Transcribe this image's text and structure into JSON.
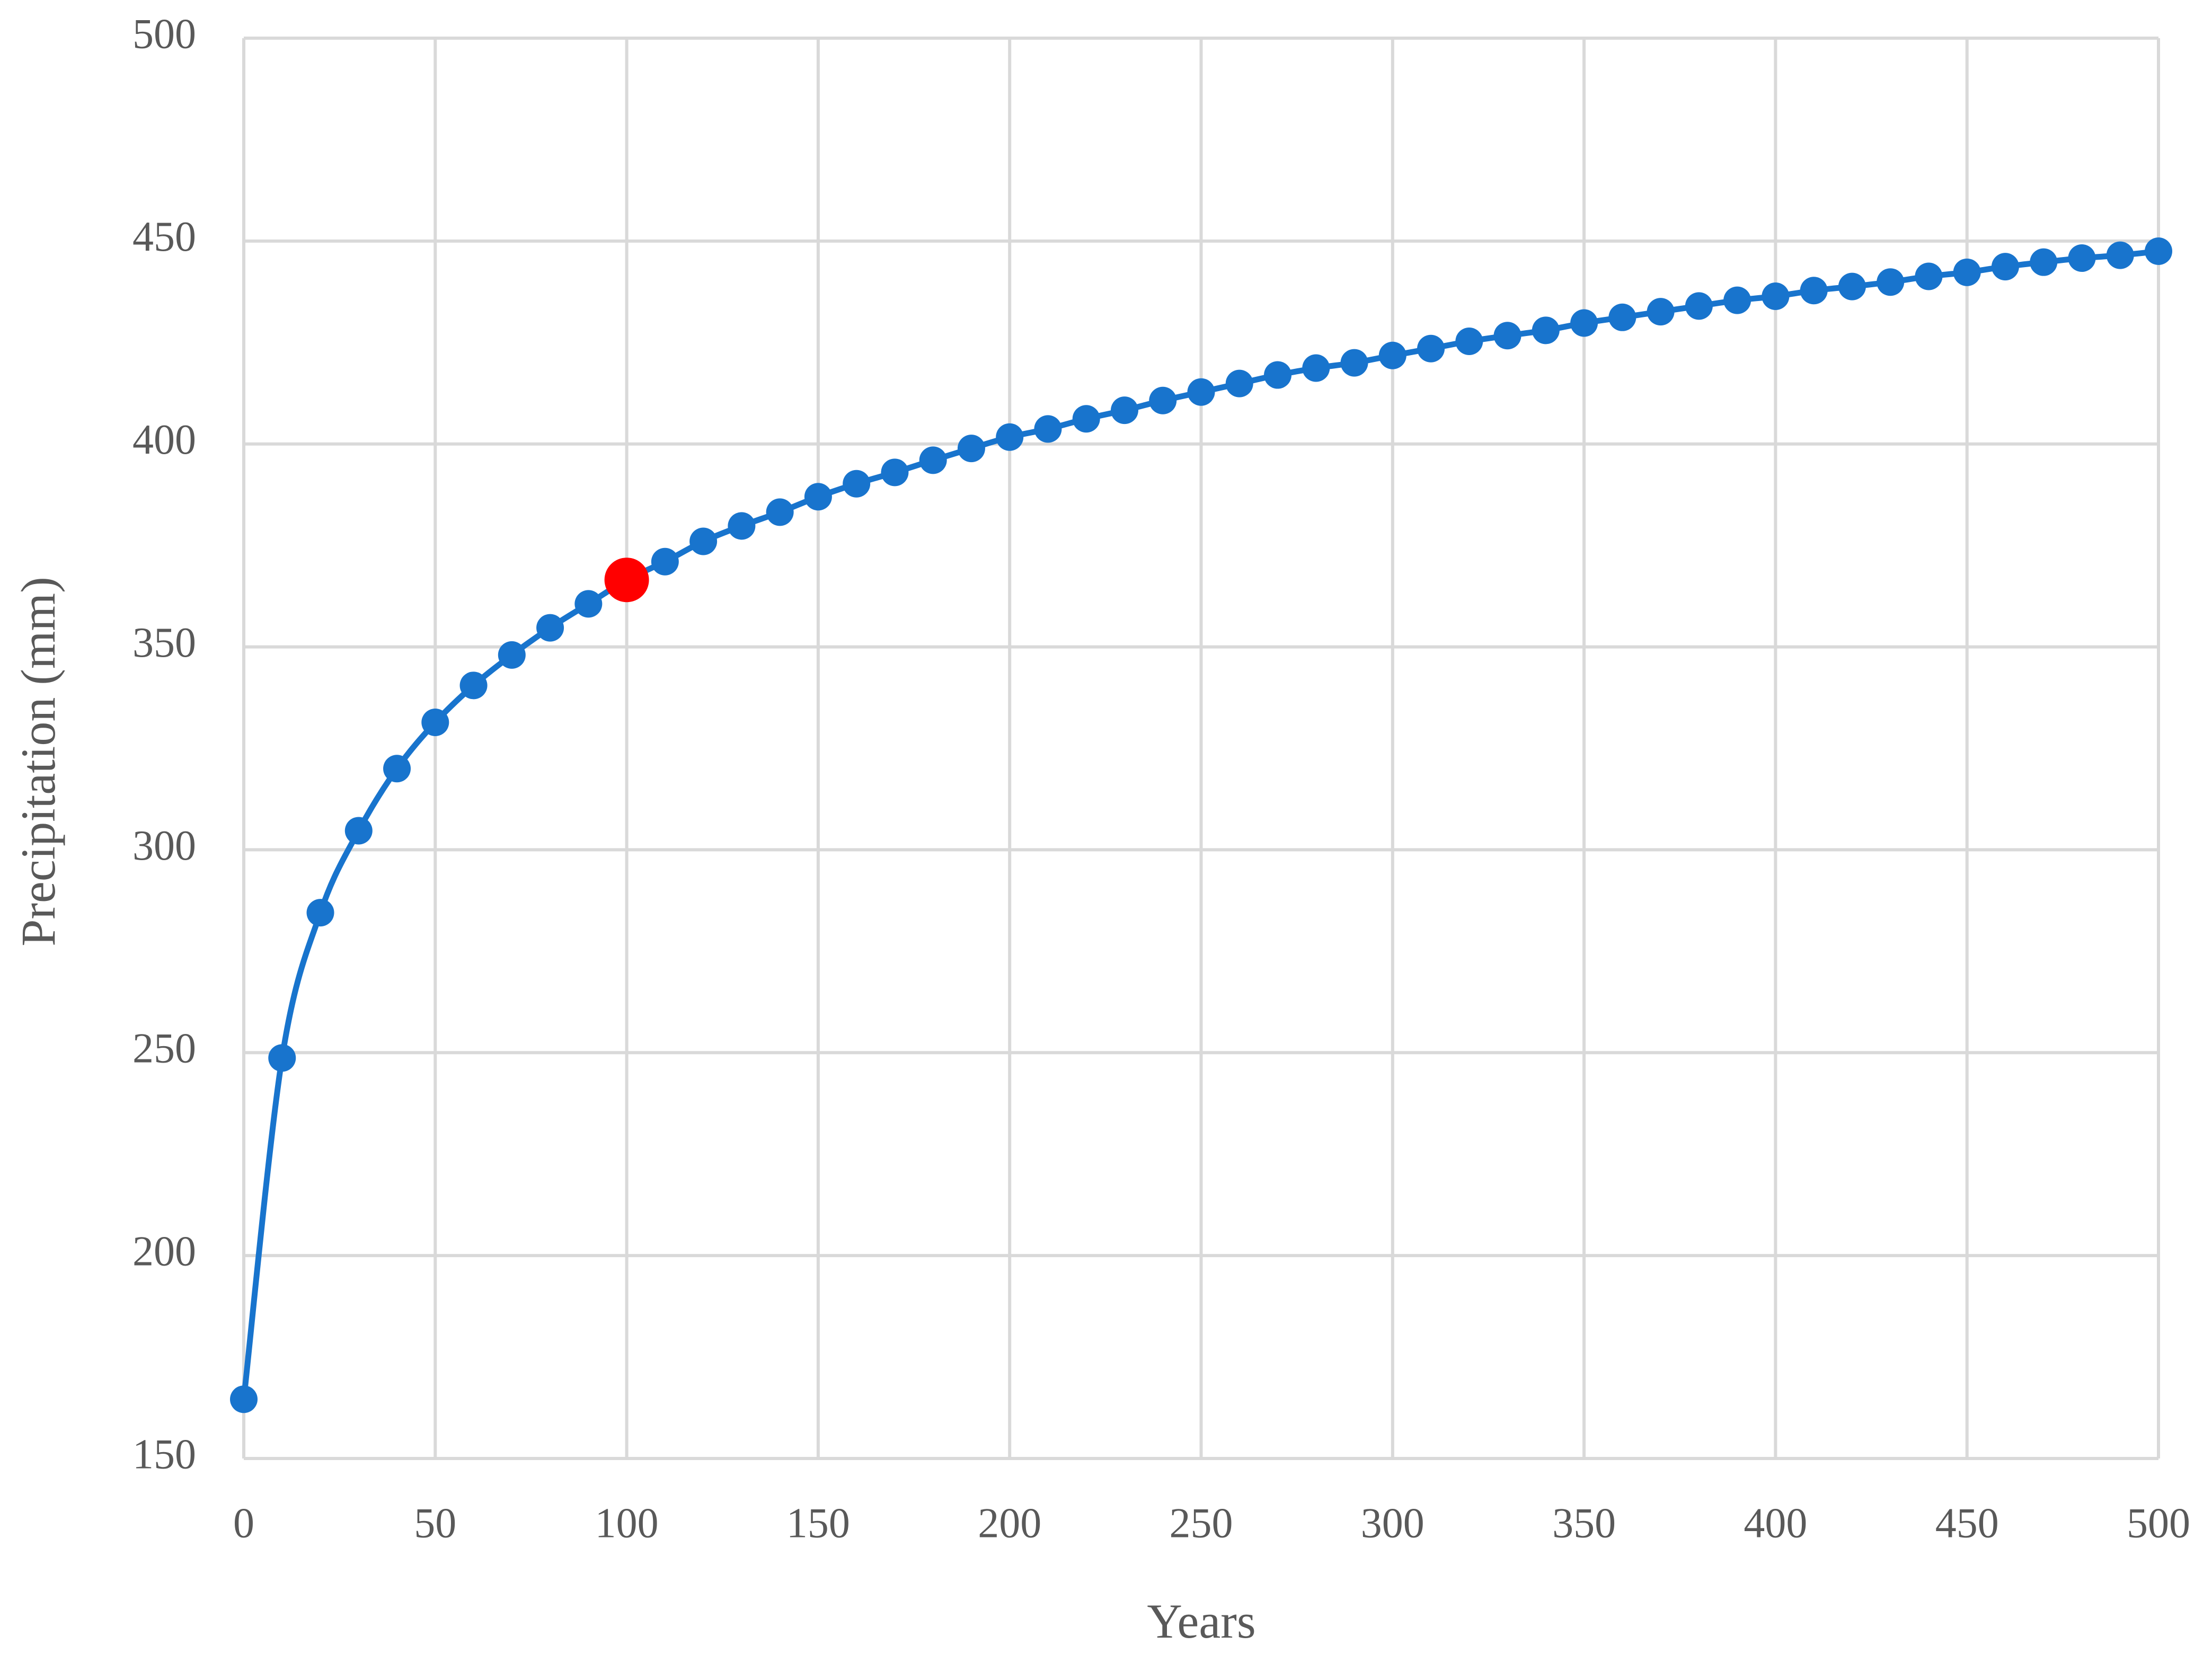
{
  "chart_data": {
    "type": "line",
    "x_label": "Years",
    "y_label": "Precipitation (mm)",
    "series": [
      {
        "color": "#1874cd",
        "x": [
          0,
          10,
          20,
          30,
          40,
          50,
          60,
          70,
          80,
          90,
          100,
          110,
          120,
          130,
          140,
          150,
          160,
          170,
          180,
          190,
          200,
          210,
          220,
          230,
          240,
          250,
          260,
          270,
          280,
          290,
          300,
          310,
          320,
          330,
          340,
          350,
          360,
          370,
          380,
          390,
          400,
          410,
          420,
          430,
          440,
          450,
          460,
          470,
          480,
          490,
          500
        ],
        "values": [
          164.6,
          248.7,
          284.5,
          304.7,
          320,
          331.4,
          340.5,
          348,
          354.7,
          360.6,
          366.5,
          371,
          376,
          379.8,
          383.2,
          387,
          390.2,
          393,
          396,
          398.9,
          401.7,
          403.7,
          406.2,
          408.3,
          410.7,
          412.8,
          414.9,
          417,
          418.7,
          420,
          421.8,
          423.5,
          425.3,
          426.7,
          428,
          429.8,
          431.2,
          432.6,
          434,
          435.4,
          436.4,
          437.8,
          438.8,
          439.9,
          441.3,
          442.3,
          443.7,
          444.8,
          445.8,
          446.5,
          447.5
        ]
      },
      {
        "color": "#ff0000",
        "x": [
          100
        ],
        "values": [
          366.5
        ]
      }
    ],
    "xlim": [
      0,
      500
    ],
    "xticks": [
      0,
      50,
      100,
      150,
      200,
      250,
      300,
      350,
      400,
      450,
      500
    ],
    "ylim": [
      150,
      500
    ],
    "yticks": [
      150,
      200,
      250,
      300,
      350,
      400,
      450,
      500
    ],
    "grid": true,
    "smooth": true
  }
}
